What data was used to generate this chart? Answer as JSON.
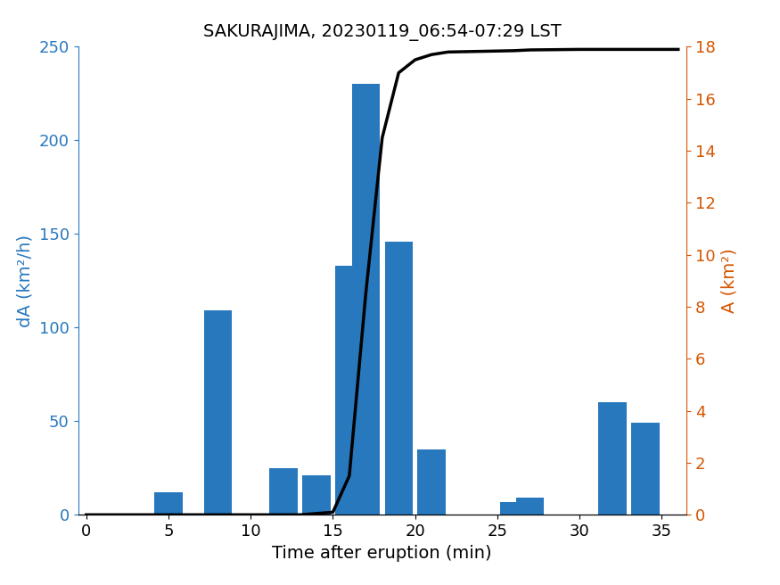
{
  "title": "SAKURAJIMA, 20230119_06:54-07:29 LST",
  "xlabel": "Time after eruption (min)",
  "ylabel_left": "dA (km²/h)",
  "ylabel_right": "A (km²)",
  "bar_centers": [
    3,
    5,
    8,
    12,
    14,
    16,
    17,
    19,
    21,
    26,
    27,
    32,
    34
  ],
  "bar_heights": [
    0,
    12,
    109,
    25,
    21,
    133,
    230,
    146,
    35,
    7,
    9,
    60,
    49
  ],
  "bar_width": 1.7,
  "bar_color": "#2878BE",
  "line_x": [
    0,
    3,
    5,
    8,
    12,
    13,
    14,
    15,
    16,
    17,
    18,
    19,
    20,
    21,
    22,
    26,
    27,
    30,
    32,
    34,
    36
  ],
  "line_y": [
    0,
    0,
    0,
    0,
    0,
    0,
    0.05,
    0.1,
    1.5,
    8.5,
    14.5,
    17.0,
    17.5,
    17.7,
    17.8,
    17.85,
    17.88,
    17.9,
    17.9,
    17.9,
    17.9
  ],
  "line_color": "#000000",
  "line_width": 2.5,
  "xlim": [
    -0.5,
    36.5
  ],
  "ylim_left": [
    0,
    250
  ],
  "ylim_right": [
    0,
    18
  ],
  "xticks": [
    0,
    5,
    10,
    15,
    20,
    25,
    30,
    35
  ],
  "yticks_left": [
    0,
    50,
    100,
    150,
    200,
    250
  ],
  "yticks_right": [
    0,
    2,
    4,
    6,
    8,
    10,
    12,
    14,
    16,
    18
  ],
  "title_fontsize": 14,
  "label_fontsize": 14,
  "tick_fontsize": 13,
  "left_tick_color": "#2878BE",
  "right_tick_color": "#D45500",
  "left_label_color": "#2878BE",
  "right_label_color": "#D45500",
  "figsize": [
    8.75,
    6.56
  ],
  "dpi": 100
}
